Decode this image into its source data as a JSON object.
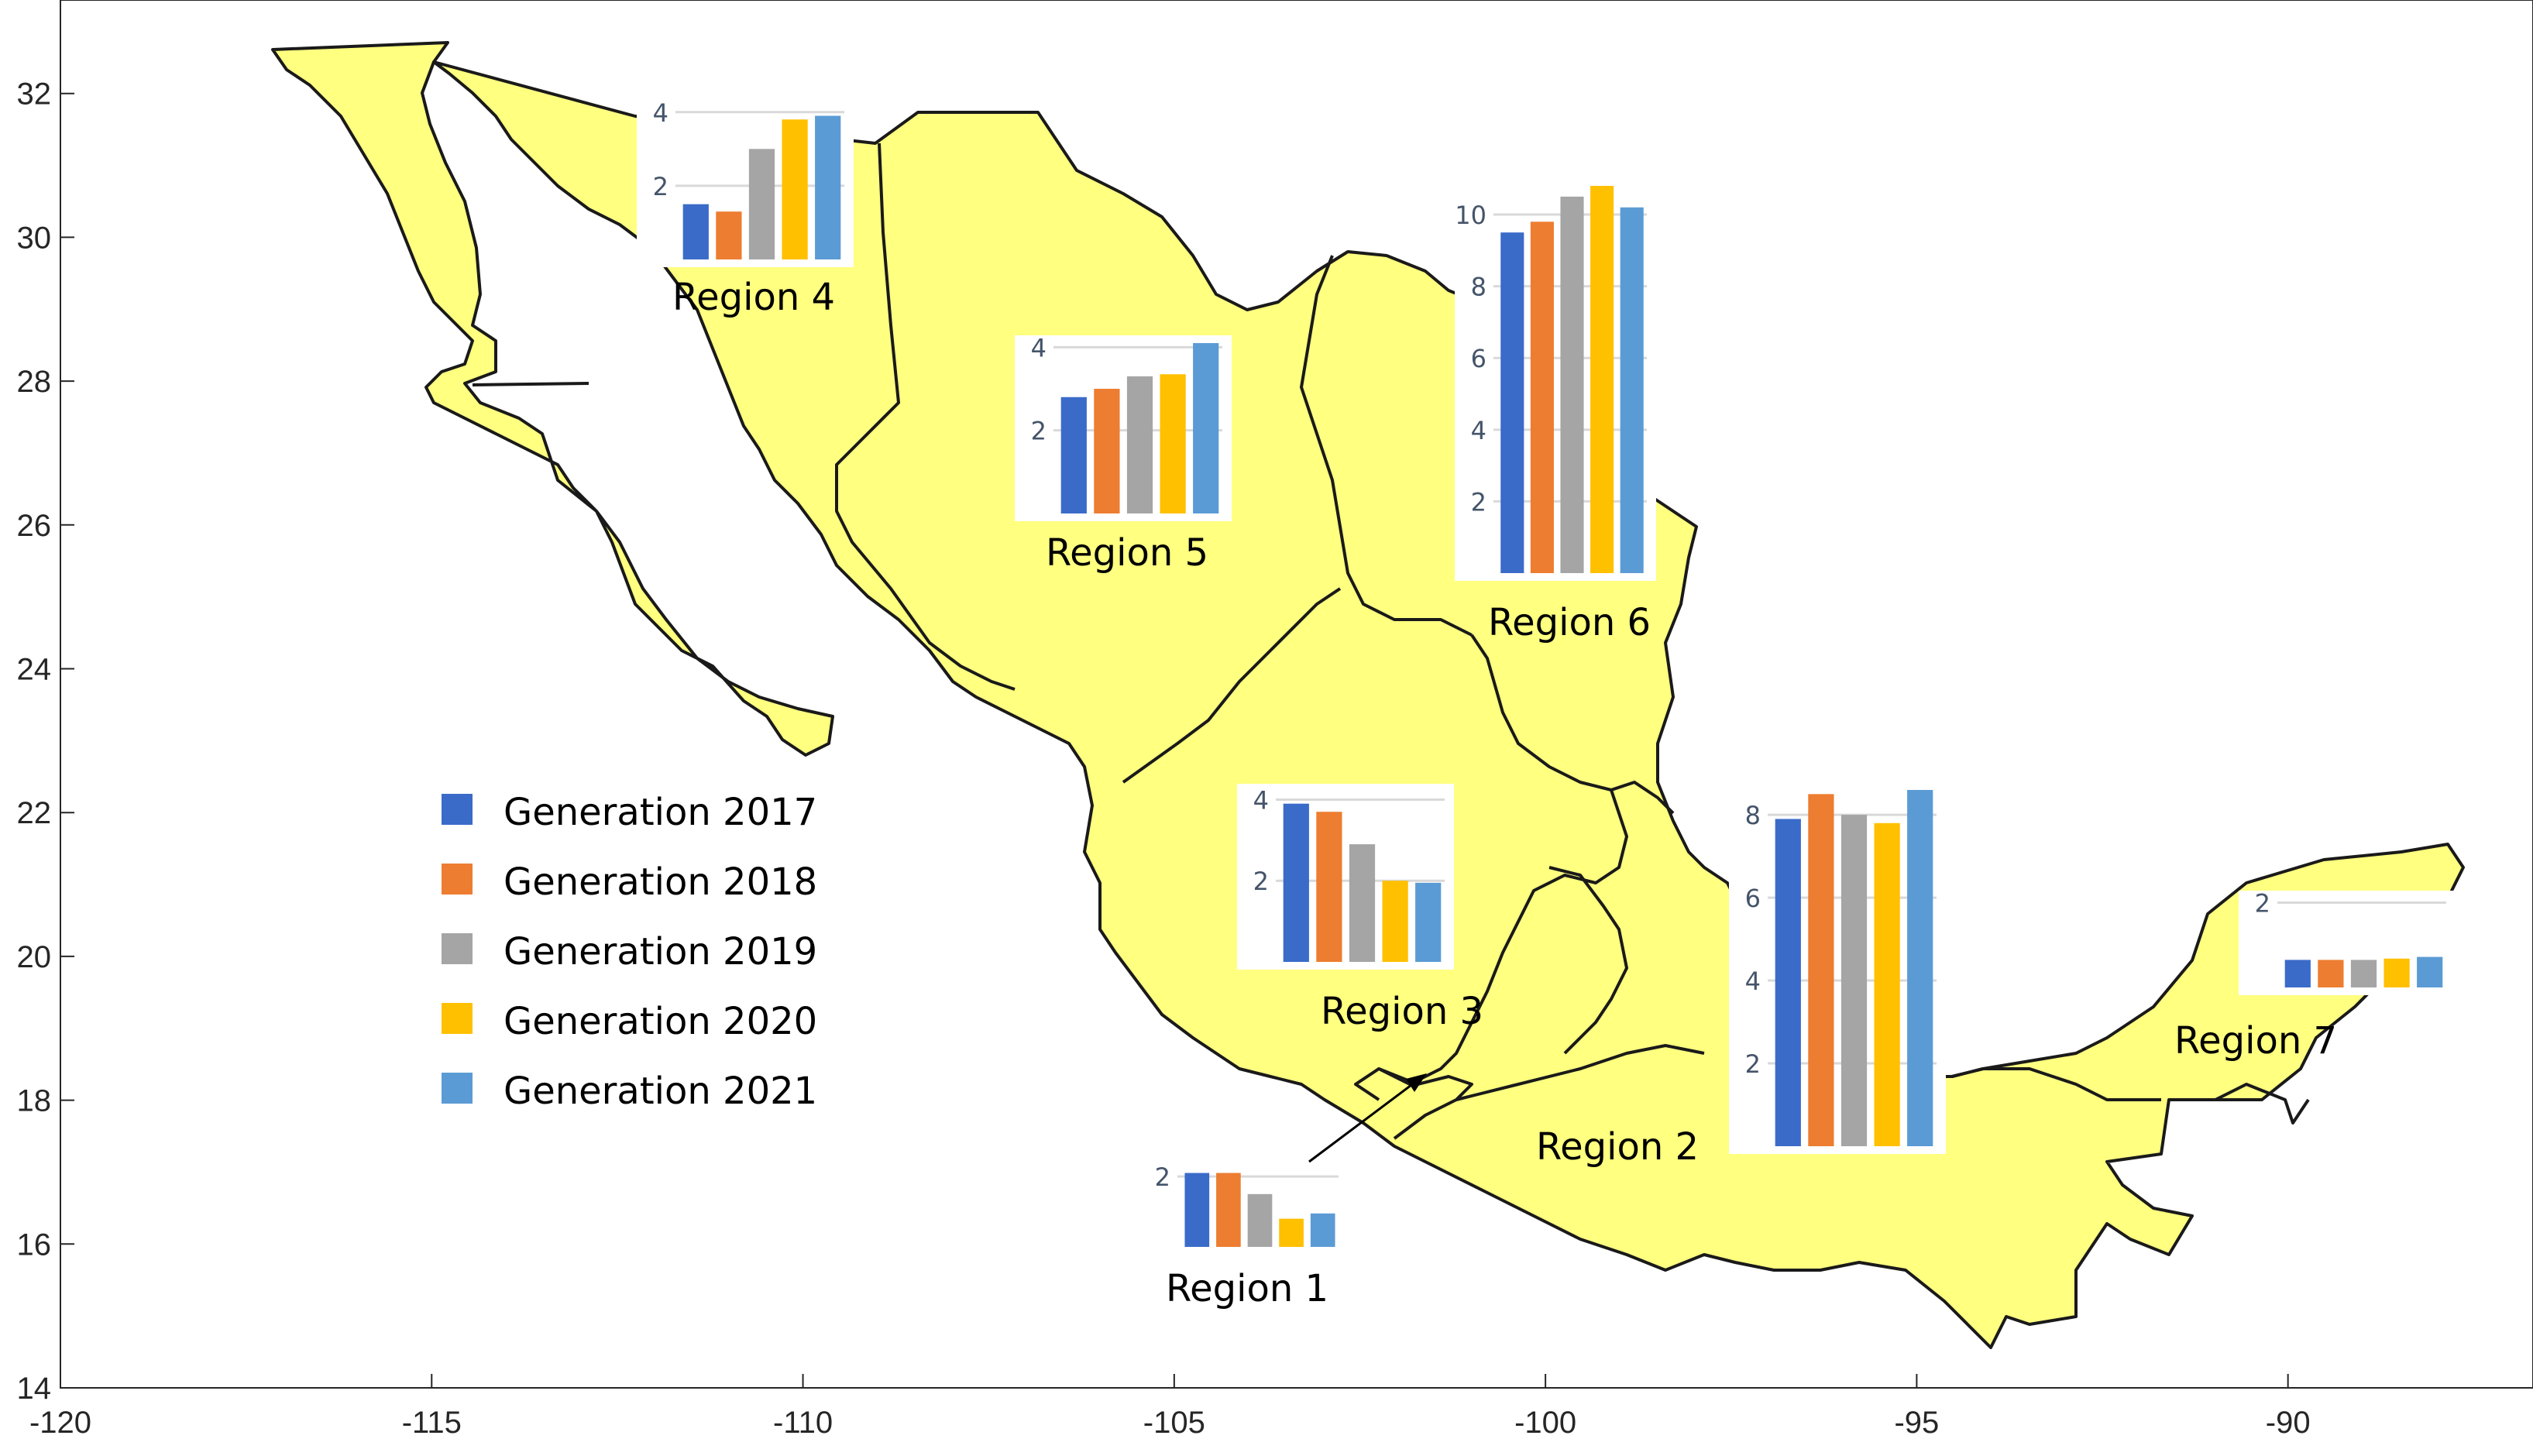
{
  "axes": {
    "x_ticks": [
      "-120",
      "-115",
      "-110",
      "-105",
      "-100",
      "-95",
      "-90"
    ],
    "y_ticks": [
      "14",
      "16",
      "18",
      "20",
      "22",
      "24",
      "26",
      "28",
      "30",
      "32"
    ],
    "xlim": [
      -120,
      -86.7
    ],
    "ylim": [
      14,
      33.3
    ]
  },
  "colors": {
    "land": "#ffff80",
    "border": "#1a1a1a",
    "series": [
      "#3a6bc9",
      "#ed7d31",
      "#a5a5a5",
      "#ffc000",
      "#5b9bd5"
    ]
  },
  "chart_data": {
    "type": "bar",
    "series_names": [
      "Generation 2017",
      "Generation 2018",
      "Generation 2019",
      "Generation 2020",
      "Generation 2021"
    ],
    "regions": [
      {
        "name": "Region 1",
        "values": [
          2.1,
          2.1,
          1.5,
          0.8,
          0.95
        ],
        "ylim": [
          0,
          2.2
        ],
        "yticks": [
          "2"
        ]
      },
      {
        "name": "Region 2",
        "values": [
          7.9,
          8.5,
          8.0,
          7.8,
          8.6
        ],
        "ylim": [
          0,
          8.6
        ],
        "yticks": [
          "2",
          "4",
          "6",
          "8"
        ]
      },
      {
        "name": "Region 3",
        "values": [
          3.9,
          3.7,
          2.9,
          2.0,
          1.95
        ],
        "ylim": [
          0,
          4.2
        ],
        "yticks": [
          "2",
          "4"
        ]
      },
      {
        "name": "Region 4",
        "values": [
          1.5,
          1.3,
          3.0,
          3.8,
          3.9
        ],
        "ylim": [
          0,
          4.1
        ],
        "yticks": [
          "2",
          "4"
        ]
      },
      {
        "name": "Region 5",
        "values": [
          2.8,
          3.0,
          3.3,
          3.35,
          4.1
        ],
        "ylim": [
          0,
          4.1
        ],
        "yticks": [
          "2",
          "4"
        ]
      },
      {
        "name": "Region 6",
        "values": [
          9.5,
          9.8,
          10.5,
          10.8,
          10.2
        ],
        "ylim": [
          0,
          10.8
        ],
        "yticks": [
          "2",
          "4",
          "6",
          "8",
          "10"
        ]
      },
      {
        "name": "Region 7",
        "values": [
          0.65,
          0.65,
          0.65,
          0.68,
          0.72
        ],
        "ylim": [
          0,
          2.1
        ],
        "yticks": [
          "2"
        ]
      }
    ]
  }
}
